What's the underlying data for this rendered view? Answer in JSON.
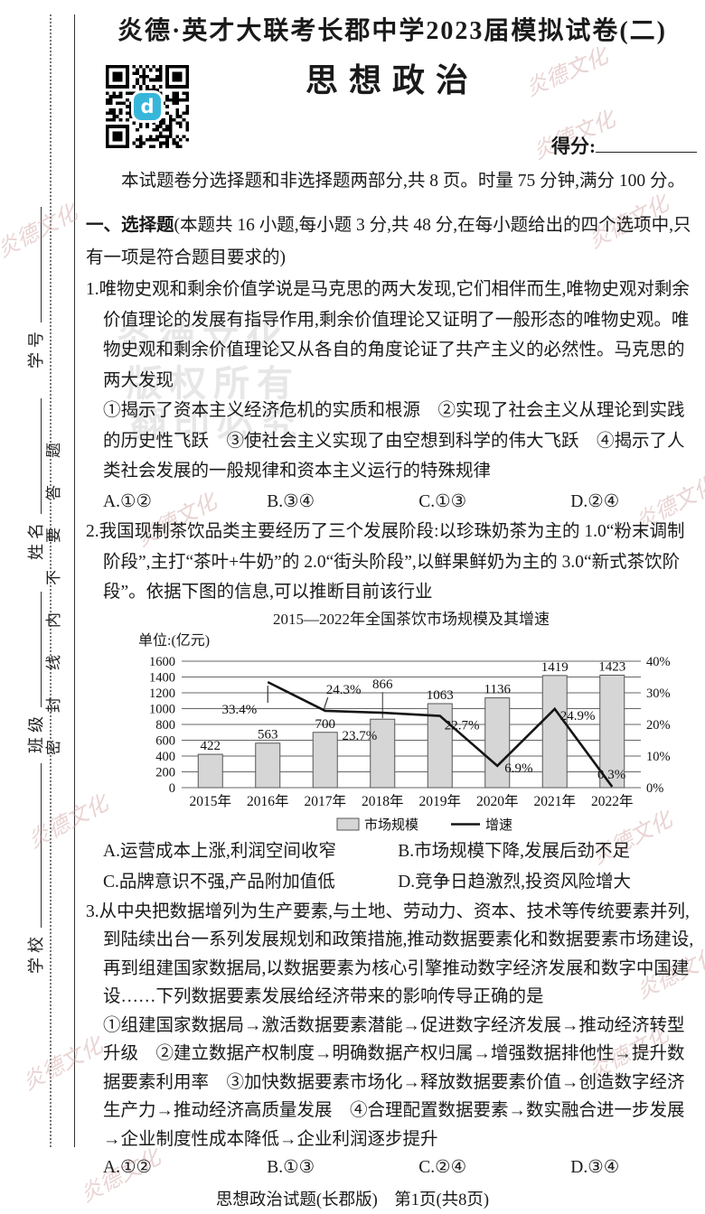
{
  "header": {
    "exam_title": "炎德·英才大联考长郡中学2023届模拟试卷(二)",
    "subject_title": "思想政治",
    "score_label": "得分:",
    "intro": "本试题卷分选择题和非选择题两部分,共 8 页。时量 75 分钟,满分 100 分。"
  },
  "sidebar": {
    "seal_text": "密封线内不要答题",
    "fields": [
      {
        "label": "学号"
      },
      {
        "label": "姓名"
      },
      {
        "label": "班级"
      },
      {
        "label": "学校"
      }
    ]
  },
  "section": {
    "title": "一、选择题",
    "note": "(本题共 16 小题,每小题 3 分,共 48 分,在每小题给出的四个选项中,只有一项是符合题目要求的)"
  },
  "questions": [
    {
      "number": "1.",
      "stem": "唯物史观和剩余价值学说是马克思的两大发现,它们相伴而生,唯物史观对剩余价值理论的发展有指导作用,剩余价值理论又证明了一般形态的唯物史观。唯物史观和剩余价值理论又从各自的角度论证了共产主义的必然性。马克思的两大发现",
      "items": "①揭示了资本主义经济危机的实质和根源　②实现了社会主义从理论到实践的历史性飞跃　③使社会主义实现了由空想到科学的伟大飞跃　④揭示了人类社会发展的一般规律和资本主义运行的特殊规律",
      "options": [
        "A.①②",
        "B.③④",
        "C.①③",
        "D.②④"
      ]
    },
    {
      "number": "2.",
      "stem": "我国现制茶饮品类主要经历了三个发展阶段:以珍珠奶茶为主的 1.0“粉末调制阶段”,主打“茶叶+牛奶”的 2.0“街头阶段”,以鲜果鲜奶为主的 3.0“新式茶饮阶段”。依据下图的信息,可以推断目前该行业",
      "options": [
        "A.运营成本上涨,利润空间收窄",
        "B.市场规模下降,发展后劲不足",
        "C.品牌意识不强,产品附加值低",
        "D.竞争日趋激烈,投资风险增大"
      ]
    },
    {
      "number": "3.",
      "stem": "从中央把数据增列为生产要素,与土地、劳动力、资本、技术等传统要素并列,到陆续出台一系列发展规划和政策措施,推动数据要素化和数据要素市场建设,再到组建国家数据局,以数据要素为核心引擎推动数字经济发展和数字中国建设……下列数据要素发展给经济带来的影响传导正确的是",
      "items": "①组建国家数据局→激活数据要素潜能→促进数字经济发展→推动经济转型升级　②建立数据产权制度→明确数据产权归属→增强数据排他性→提升数据要素利用率　③加快数据要素市场化→释放数据要素价值→创造数字经济生产力→推动经济高质量发展　④合理配置数据要素→数实融合进一步发展→企业制度性成本降低→企业利润逐步提升",
      "options": [
        "A.①②",
        "B.①③",
        "C.②④",
        "D.③④"
      ]
    }
  ],
  "chart_data": {
    "type": "bar+line",
    "title": "2015—2022年全国茶饮市场规模及其增速",
    "unit_label": "单位:(亿元)",
    "categories": [
      "2015年",
      "2016年",
      "2017年",
      "2018年",
      "2019年",
      "2020年",
      "2021年",
      "2022年"
    ],
    "series": [
      {
        "name": "市场规模",
        "type": "bar",
        "values": [
          422,
          563,
          700,
          866,
          1063,
          1136,
          1419,
          1423
        ]
      },
      {
        "name": "增速",
        "type": "line",
        "values": [
          null,
          33.4,
          24.3,
          23.7,
          22.7,
          6.9,
          24.9,
          0.3
        ],
        "suffix": "%"
      }
    ],
    "left_axis": {
      "min": 0,
      "max": 1600,
      "step": 200
    },
    "right_axis": {
      "min": 0,
      "max": 40,
      "step": 10,
      "suffix": "%"
    },
    "legend_position": "bottom",
    "grid": true,
    "bar_color": "#d6d6d6",
    "line_color": "#151515"
  },
  "qr": {
    "logo_letter": "d",
    "logo_color": "#38b6da"
  },
  "watermarks": {
    "brand": "炎德文化",
    "stamp1": "版权所有",
    "stamp2": "翻印必究"
  },
  "footer": {
    "text": "思想政治试题(长郡版)　第1页(共8页)"
  }
}
